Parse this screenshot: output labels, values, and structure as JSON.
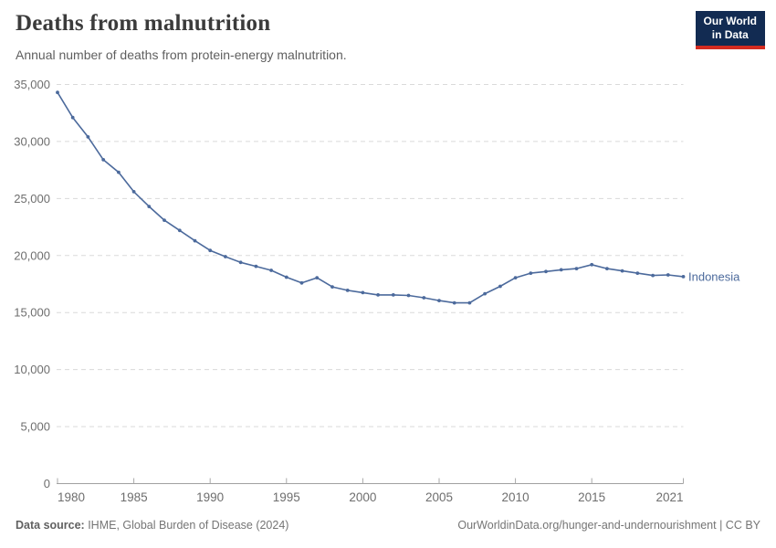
{
  "header": {
    "title": "Deaths from malnutrition",
    "subtitle": "Annual number of deaths from protein-energy malnutrition.",
    "logo": {
      "line1": "Our World",
      "line2": "in Data",
      "bg": "#122b52",
      "accent": "#d42b20"
    }
  },
  "chart_data": {
    "type": "line",
    "title": "Deaths from malnutrition",
    "subtitle": "Annual number of deaths from protein-energy malnutrition.",
    "xlabel": "",
    "ylabel": "",
    "xlim": [
      1980,
      2021
    ],
    "ylim": [
      0,
      35000
    ],
    "x_ticks": [
      1980,
      1985,
      1990,
      1995,
      2000,
      2005,
      2010,
      2015,
      2021
    ],
    "y_ticks": [
      0,
      5000,
      10000,
      15000,
      20000,
      25000,
      30000,
      35000
    ],
    "grid": "horizontal-dashed",
    "legend_position": "end-of-line-label",
    "series": [
      {
        "name": "Indonesia",
        "color": "#4c6a9c",
        "points": [
          [
            1980,
            34300
          ],
          [
            1981,
            32100
          ],
          [
            1982,
            30400
          ],
          [
            1983,
            28400
          ],
          [
            1984,
            27300
          ],
          [
            1985,
            25600
          ],
          [
            1986,
            24300
          ],
          [
            1987,
            23100
          ],
          [
            1988,
            22200
          ],
          [
            1989,
            21300
          ],
          [
            1990,
            20450
          ],
          [
            1991,
            19900
          ],
          [
            1992,
            19400
          ],
          [
            1993,
            19050
          ],
          [
            1994,
            18700
          ],
          [
            1995,
            18100
          ],
          [
            1996,
            17600
          ],
          [
            1997,
            18050
          ],
          [
            1998,
            17250
          ],
          [
            1999,
            16950
          ],
          [
            2000,
            16750
          ],
          [
            2001,
            16550
          ],
          [
            2002,
            16550
          ],
          [
            2003,
            16500
          ],
          [
            2004,
            16300
          ],
          [
            2005,
            16050
          ],
          [
            2006,
            15850
          ],
          [
            2007,
            15850
          ],
          [
            2008,
            16650
          ],
          [
            2009,
            17300
          ],
          [
            2010,
            18050
          ],
          [
            2011,
            18450
          ],
          [
            2012,
            18600
          ],
          [
            2013,
            18750
          ],
          [
            2014,
            18850
          ],
          [
            2015,
            19200
          ],
          [
            2016,
            18850
          ],
          [
            2017,
            18650
          ],
          [
            2018,
            18450
          ],
          [
            2019,
            18250
          ],
          [
            2020,
            18300
          ],
          [
            2021,
            18150
          ]
        ]
      }
    ]
  },
  "footer": {
    "source_label": "Data source:",
    "source_value": "IHME, Global Burden of Disease (2024)",
    "credit": "OurWorldinData.org/hunger-and-undernourishment | CC BY"
  }
}
